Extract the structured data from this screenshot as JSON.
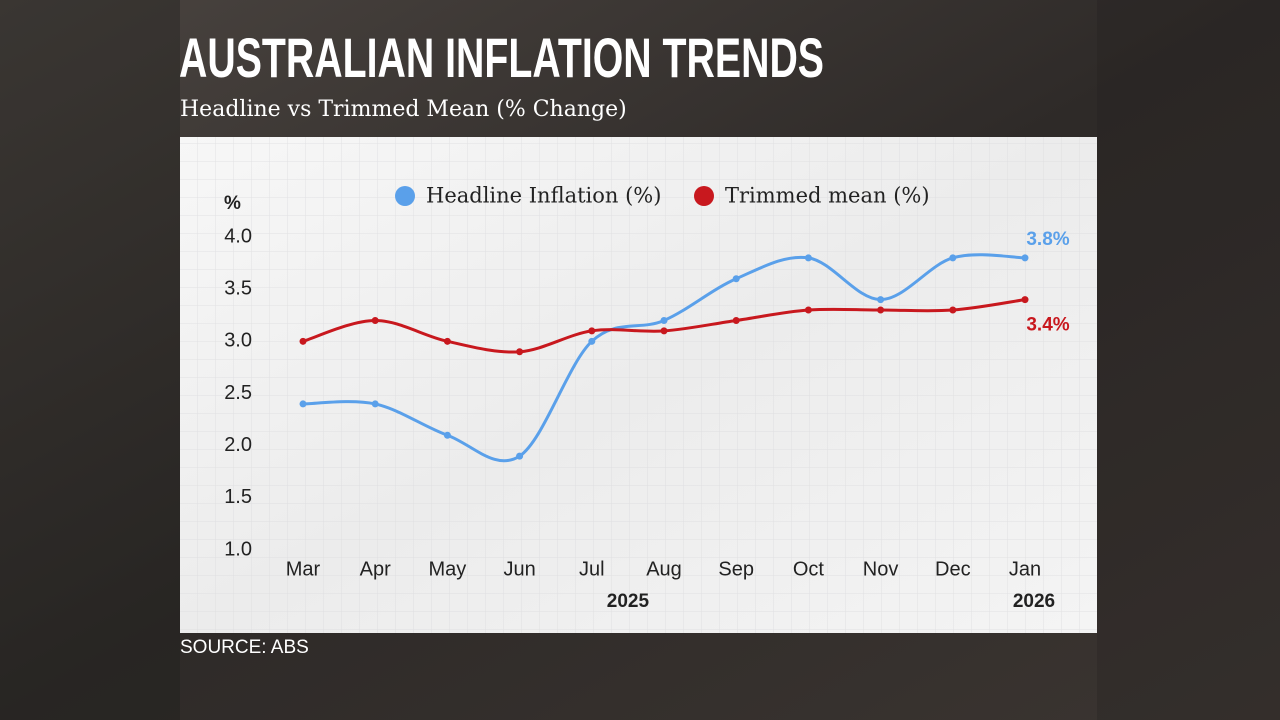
{
  "chart_data": {
    "type": "line",
    "title": "AUSTRALIAN INFLATION TRENDS",
    "subtitle": "Headline vs Trimmed Mean (% Change)",
    "y_label": "%",
    "source": "SOURCE: ABS",
    "categories": [
      "Mar",
      "Apr",
      "May",
      "Jun",
      "Jul",
      "Aug",
      "Sep",
      "Oct",
      "Nov",
      "Dec",
      "Jan"
    ],
    "year_labels": [
      {
        "text": "2025",
        "category": "Jul"
      },
      {
        "text": "2026",
        "category": "Jan"
      }
    ],
    "series": [
      {
        "name": "Headline Inflation (%)",
        "color": "#5aa0ea",
        "values": [
          2.4,
          2.4,
          2.1,
          1.9,
          3.0,
          3.2,
          3.6,
          3.8,
          3.4,
          3.8,
          3.8
        ],
        "value_labels": [
          null,
          null,
          null,
          null,
          null,
          null,
          null,
          null,
          null,
          null,
          "3.8%"
        ]
      },
      {
        "name": "Trimmed mean (%)",
        "color": "#c8181e",
        "values": [
          3.0,
          3.2,
          3.0,
          2.9,
          3.1,
          3.1,
          3.2,
          3.3,
          3.3,
          3.3,
          3.4
        ],
        "value_labels": [
          null,
          null,
          null,
          null,
          null,
          null,
          null,
          null,
          null,
          null,
          "3.4%"
        ]
      }
    ],
    "ylim": [
      1.0,
      4.0
    ],
    "yticks": [
      {
        "value": 1.0,
        "label": "1.0"
      },
      {
        "value": 1.5,
        "label": "1.5"
      },
      {
        "value": 2.0,
        "label": "2.0"
      },
      {
        "value": 2.5,
        "label": "2.5"
      },
      {
        "value": 3.0,
        "label": "3.0"
      },
      {
        "value": 3.5,
        "label": "3.5"
      },
      {
        "value": 4.0,
        "label": "4.0"
      }
    ],
    "grid": false,
    "legend": "top"
  }
}
